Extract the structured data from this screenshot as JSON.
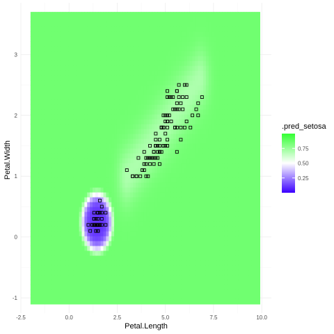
{
  "chart_data": {
    "type": "heatmap",
    "title": "",
    "xlabel": "Petal.Length",
    "ylabel": "Petal.Width",
    "xlim": [
      -2.5,
      10.5
    ],
    "ylim": [
      -1.25,
      3.85
    ],
    "x_ticks": [
      -2.5,
      0.0,
      2.5,
      5.0,
      7.5,
      10.0
    ],
    "x_tick_labels": [
      "-2.5",
      "0.0",
      "2.5",
      "5.0",
      "7.5",
      "10.0"
    ],
    "y_ticks": [
      -1,
      0,
      1,
      2,
      3
    ],
    "y_tick_labels": [
      "-1",
      "0",
      "1",
      "2",
      "3"
    ],
    "grid": true,
    "grid_extent": {
      "x": [
        -2.0,
        9.9
      ],
      "y": [
        -1.1,
        3.7
      ]
    },
    "prediction_field": {
      "name": ".pred_setosa",
      "background_value": 0.85,
      "setosa_region": {
        "center": [
          1.45,
          0.25
        ],
        "semi_axes": [
          0.75,
          0.45
        ],
        "min_value": 0.1
      },
      "versicolor_virginica_band": {
        "from": [
          3.0,
          1.0
        ],
        "to": [
          6.8,
          2.6
        ],
        "half_width": 0.45,
        "value": 0.7
      }
    },
    "legend": {
      "title": ".pred_setosa",
      "placement": "right",
      "range": [
        0.0,
        1.0
      ],
      "midpoint": 0.5,
      "colors": {
        "low": "#3b00ff",
        "mid": "#ffffff",
        "high": "#33ff33"
      },
      "breaks": [
        0.75,
        0.5,
        0.25
      ],
      "break_labels": [
        "0.75",
        "0.50",
        "0.25"
      ]
    },
    "points": [
      [
        1.4,
        0.2
      ],
      [
        1.4,
        0.2
      ],
      [
        1.3,
        0.2
      ],
      [
        1.5,
        0.2
      ],
      [
        1.4,
        0.2
      ],
      [
        1.7,
        0.4
      ],
      [
        1.4,
        0.3
      ],
      [
        1.5,
        0.2
      ],
      [
        1.4,
        0.2
      ],
      [
        1.5,
        0.1
      ],
      [
        1.5,
        0.2
      ],
      [
        1.6,
        0.2
      ],
      [
        1.4,
        0.1
      ],
      [
        1.1,
        0.1
      ],
      [
        1.2,
        0.2
      ],
      [
        1.5,
        0.4
      ],
      [
        1.3,
        0.4
      ],
      [
        1.4,
        0.3
      ],
      [
        1.7,
        0.3
      ],
      [
        1.5,
        0.3
      ],
      [
        1.7,
        0.2
      ],
      [
        1.5,
        0.4
      ],
      [
        1.0,
        0.2
      ],
      [
        1.7,
        0.5
      ],
      [
        1.9,
        0.2
      ],
      [
        1.6,
        0.2
      ],
      [
        1.6,
        0.4
      ],
      [
        1.5,
        0.2
      ],
      [
        1.4,
        0.2
      ],
      [
        1.6,
        0.2
      ],
      [
        1.6,
        0.2
      ],
      [
        1.5,
        0.4
      ],
      [
        1.5,
        0.1
      ],
      [
        1.4,
        0.2
      ],
      [
        1.5,
        0.2
      ],
      [
        1.2,
        0.2
      ],
      [
        1.3,
        0.2
      ],
      [
        1.4,
        0.1
      ],
      [
        1.3,
        0.2
      ],
      [
        1.5,
        0.2
      ],
      [
        1.3,
        0.3
      ],
      [
        1.3,
        0.3
      ],
      [
        1.3,
        0.2
      ],
      [
        1.6,
        0.6
      ],
      [
        1.9,
        0.4
      ],
      [
        1.4,
        0.3
      ],
      [
        1.6,
        0.2
      ],
      [
        1.4,
        0.2
      ],
      [
        1.5,
        0.2
      ],
      [
        1.4,
        0.2
      ],
      [
        4.7,
        1.4
      ],
      [
        4.5,
        1.5
      ],
      [
        4.9,
        1.5
      ],
      [
        4.0,
        1.3
      ],
      [
        4.6,
        1.5
      ],
      [
        4.5,
        1.3
      ],
      [
        4.7,
        1.6
      ],
      [
        3.3,
        1.0
      ],
      [
        4.6,
        1.3
      ],
      [
        3.9,
        1.4
      ],
      [
        3.5,
        1.0
      ],
      [
        4.2,
        1.5
      ],
      [
        4.0,
        1.0
      ],
      [
        4.7,
        1.4
      ],
      [
        3.6,
        1.3
      ],
      [
        4.4,
        1.4
      ],
      [
        4.5,
        1.5
      ],
      [
        4.1,
        1.0
      ],
      [
        4.5,
        1.5
      ],
      [
        3.9,
        1.1
      ],
      [
        4.8,
        1.8
      ],
      [
        4.0,
        1.3
      ],
      [
        4.9,
        1.5
      ],
      [
        4.7,
        1.2
      ],
      [
        4.3,
        1.3
      ],
      [
        4.4,
        1.4
      ],
      [
        4.8,
        1.4
      ],
      [
        5.0,
        1.7
      ],
      [
        4.5,
        1.5
      ],
      [
        3.5,
        1.0
      ],
      [
        3.8,
        1.1
      ],
      [
        3.7,
        1.0
      ],
      [
        3.9,
        1.2
      ],
      [
        5.1,
        1.6
      ],
      [
        4.5,
        1.5
      ],
      [
        4.5,
        1.6
      ],
      [
        4.7,
        1.5
      ],
      [
        4.4,
        1.3
      ],
      [
        4.1,
        1.3
      ],
      [
        4.0,
        1.3
      ],
      [
        4.4,
        1.2
      ],
      [
        4.6,
        1.4
      ],
      [
        4.0,
        1.2
      ],
      [
        3.3,
        1.0
      ],
      [
        4.2,
        1.3
      ],
      [
        4.2,
        1.2
      ],
      [
        4.2,
        1.3
      ],
      [
        4.3,
        1.3
      ],
      [
        3.0,
        1.1
      ],
      [
        4.1,
        1.3
      ],
      [
        6.0,
        2.5
      ],
      [
        5.1,
        1.9
      ],
      [
        5.9,
        2.1
      ],
      [
        5.6,
        1.8
      ],
      [
        5.8,
        2.2
      ],
      [
        6.6,
        2.1
      ],
      [
        4.5,
        1.7
      ],
      [
        6.3,
        1.8
      ],
      [
        5.8,
        1.8
      ],
      [
        6.1,
        2.5
      ],
      [
        5.1,
        2.0
      ],
      [
        5.3,
        1.9
      ],
      [
        5.5,
        2.1
      ],
      [
        5.0,
        2.0
      ],
      [
        5.1,
        2.4
      ],
      [
        5.3,
        2.3
      ],
      [
        5.5,
        1.8
      ],
      [
        6.7,
        2.2
      ],
      [
        6.9,
        2.3
      ],
      [
        5.0,
        1.5
      ],
      [
        5.7,
        2.3
      ],
      [
        4.9,
        2.0
      ],
      [
        6.7,
        2.0
      ],
      [
        4.9,
        1.8
      ],
      [
        5.7,
        2.1
      ],
      [
        6.0,
        1.8
      ],
      [
        4.8,
        1.8
      ],
      [
        4.9,
        1.8
      ],
      [
        5.6,
        2.1
      ],
      [
        5.8,
        1.6
      ],
      [
        6.1,
        1.9
      ],
      [
        6.4,
        2.0
      ],
      [
        5.6,
        2.2
      ],
      [
        5.1,
        1.5
      ],
      [
        5.6,
        1.4
      ],
      [
        6.1,
        2.3
      ],
      [
        5.6,
        2.4
      ],
      [
        5.5,
        1.8
      ],
      [
        4.8,
        1.8
      ],
      [
        5.4,
        2.1
      ],
      [
        5.6,
        2.4
      ],
      [
        5.1,
        2.3
      ],
      [
        5.1,
        1.9
      ],
      [
        5.9,
        2.3
      ],
      [
        5.7,
        2.5
      ],
      [
        5.2,
        2.3
      ],
      [
        5.0,
        1.9
      ],
      [
        5.2,
        2.0
      ],
      [
        5.4,
        2.3
      ],
      [
        5.1,
        1.8
      ]
    ]
  }
}
